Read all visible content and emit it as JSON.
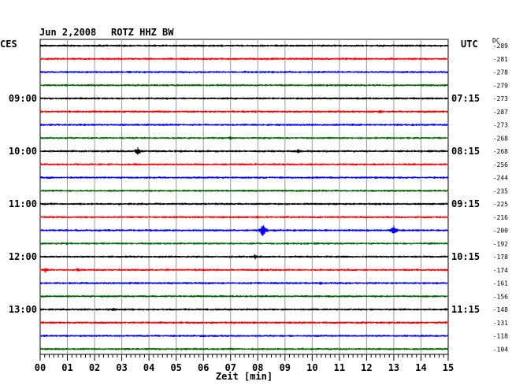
{
  "header": {
    "date": "Jun 2,2008",
    "station": "ROTZ HHZ BW",
    "left_zone": "CES",
    "right_zone": "UTC",
    "dc_label": "DC"
  },
  "chart_data": {
    "type": "line",
    "title": "Jun 2,2008   ROTZ HHZ BW",
    "xlabel": "Zeit [min]",
    "xlim": [
      0,
      15
    ],
    "x_ticks": [
      "00",
      "01",
      "02",
      "03",
      "04",
      "05",
      "06",
      "07",
      "08",
      "09",
      "10",
      "11",
      "12",
      "13",
      "14",
      "15"
    ],
    "trace_colors": [
      "#000000",
      "#ff0000",
      "#0000ff",
      "#006400"
    ],
    "left_time_labels": [
      "09:00",
      "10:00",
      "11:00",
      "12:00",
      "13:00"
    ],
    "right_time_labels": [
      "07:15",
      "08:15",
      "09:15",
      "10:15",
      "11:15"
    ],
    "time_label_every_n_traces": 4,
    "time_label_first_trace": 4,
    "dc_offsets": [
      -289,
      -281,
      -278,
      -279,
      -273,
      -287,
      -273,
      -268,
      -268,
      -256,
      -244,
      -235,
      -225,
      -216,
      -200,
      -192,
      -178,
      -174,
      -161,
      -156,
      -148,
      -131,
      -118,
      -104
    ],
    "events": [
      {
        "trace": 8,
        "minute": 3.6,
        "amplitude": 6
      },
      {
        "trace": 8,
        "minute": 9.5,
        "amplitude": 4
      },
      {
        "trace": 14,
        "minute": 8.2,
        "amplitude": 10
      },
      {
        "trace": 14,
        "minute": 13.0,
        "amplitude": 7
      },
      {
        "trace": 16,
        "minute": 7.9,
        "amplitude": 4
      },
      {
        "trace": 17,
        "minute": 0.2,
        "amplitude": 4
      },
      {
        "trace": 17,
        "minute": 1.4,
        "amplitude": 3
      },
      {
        "trace": 5,
        "minute": 12.5,
        "amplitude": 3
      },
      {
        "trace": 13,
        "minute": 8.0,
        "amplitude": 3
      },
      {
        "trace": 18,
        "minute": 10.3,
        "amplitude": 3
      },
      {
        "trace": 20,
        "minute": 2.7,
        "amplitude": 3
      },
      {
        "trace": 7,
        "minute": 7.0,
        "amplitude": 3
      }
    ]
  }
}
